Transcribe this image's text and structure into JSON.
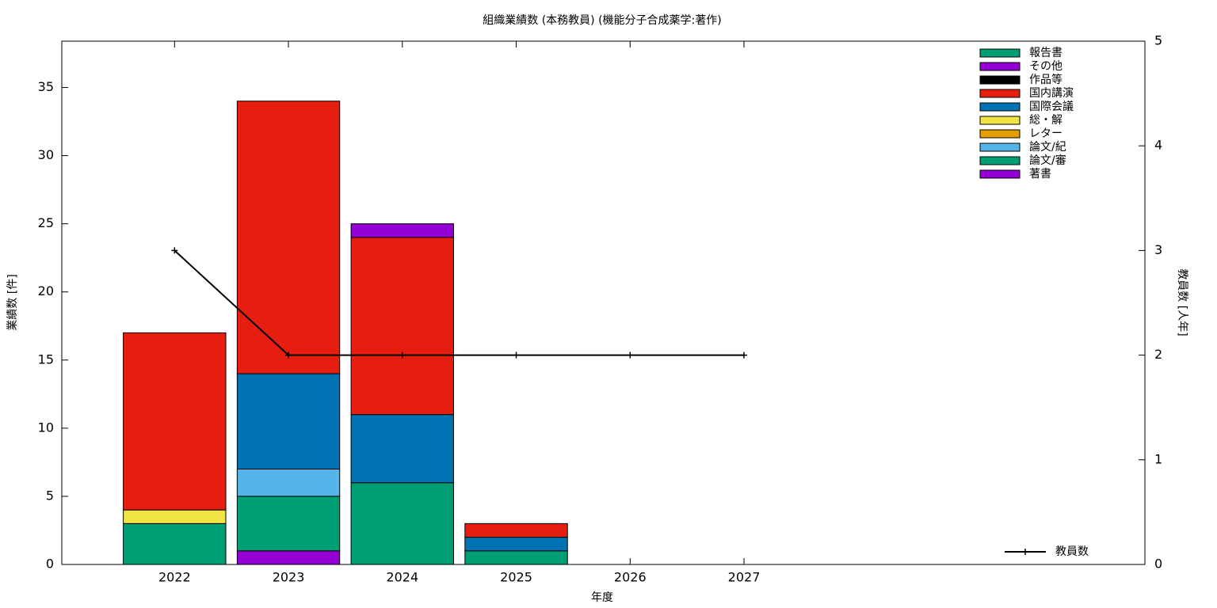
{
  "chart_data": {
    "type": "bar",
    "stacked": true,
    "title": "組織業績数 (本務教員) (機能分子合成薬学:著作)",
    "xlabel": "年度",
    "ylabel": "業績数 [件]",
    "y2label": "教員数 [人年]",
    "x": [
      2022,
      2023,
      2024,
      2025,
      2026,
      2027
    ],
    "xlim": [
      2021.01,
      2030.52
    ],
    "xticks": [
      2022,
      2023,
      2024,
      2025,
      2026,
      2027
    ],
    "ylim": [
      0,
      38.4
    ],
    "yticks": [
      0,
      5,
      10,
      15,
      20,
      25,
      30,
      35
    ],
    "y2lim": [
      0,
      5
    ],
    "y2ticks": [
      0,
      1,
      2,
      3,
      4,
      5
    ],
    "grid": false,
    "legend": "top-right",
    "line_legend": "bottom-right",
    "series": [
      {
        "name": "著書",
        "color": "#9400d3",
        "values": [
          0,
          1,
          0,
          0,
          0,
          0
        ]
      },
      {
        "name": "論文/審",
        "color": "#009e73",
        "values": [
          3,
          4,
          6,
          1,
          0,
          0
        ]
      },
      {
        "name": "論文/紀",
        "color": "#56b4e9",
        "values": [
          0,
          2,
          0,
          0,
          0,
          0
        ]
      },
      {
        "name": "レター",
        "color": "#e69f00",
        "values": [
          0,
          0,
          0,
          0,
          0,
          0
        ]
      },
      {
        "name": "総・解",
        "color": "#f0e442",
        "values": [
          1,
          0,
          0,
          0,
          0,
          0
        ]
      },
      {
        "name": "国際会議",
        "color": "#0072b2",
        "values": [
          0,
          7,
          5,
          1,
          0,
          0
        ]
      },
      {
        "name": "国内講演",
        "color": "#e51e10",
        "values": [
          13,
          20,
          13,
          1,
          0,
          0
        ]
      },
      {
        "name": "作品等",
        "color": "#000000",
        "values": [
          0,
          0,
          0,
          0,
          0,
          0
        ]
      },
      {
        "name": "その他",
        "color": "#9400d3",
        "values": [
          0,
          0,
          1,
          0,
          0,
          0
        ]
      },
      {
        "name": "報告書",
        "color": "#009e73",
        "values": [
          0,
          0,
          0,
          0,
          0,
          0
        ]
      },
      {
        "name": "教員数",
        "type": "line",
        "axis": "y2",
        "color": "#000000",
        "values": [
          3,
          2,
          2,
          2,
          2,
          2
        ]
      }
    ]
  }
}
